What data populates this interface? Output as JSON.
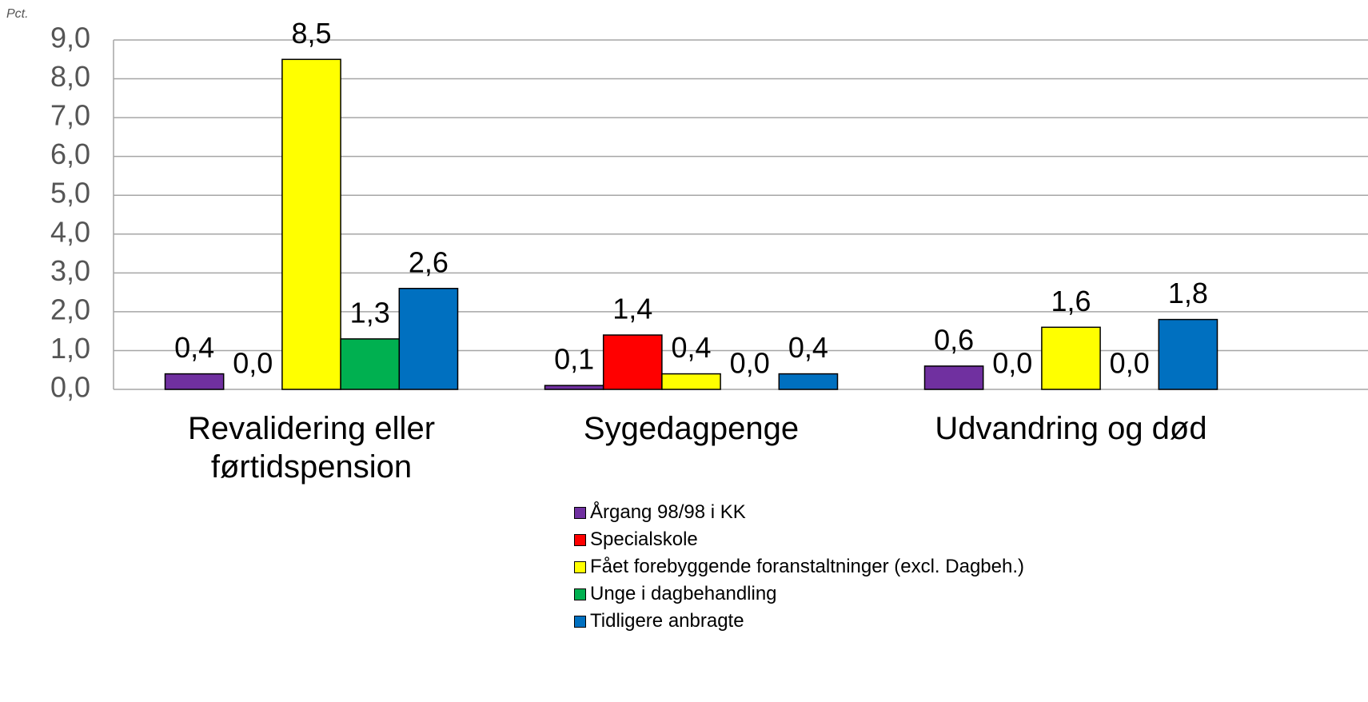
{
  "chart_data": {
    "type": "bar",
    "y_label": "Pct.",
    "categories": [
      "Revalidering eller førtidspension",
      "Sygedagpenge",
      "Udvandring og død"
    ],
    "series": [
      {
        "name": "Årgang 98/98 i KK",
        "color": "#7030a0",
        "values": [
          0.4,
          0.1,
          0.6
        ],
        "value_labels": [
          "0,4",
          "0,1",
          "0,6"
        ]
      },
      {
        "name": "Specialskole",
        "color": "#ff0000",
        "values": [
          0.0,
          1.4,
          0.0
        ],
        "value_labels": [
          "0,0",
          "1,4",
          "0,0"
        ]
      },
      {
        "name": "Fået forebyggende foranstaltninger (excl. Dagbeh.)",
        "color": "#ffff00",
        "values": [
          8.5,
          0.4,
          1.6
        ],
        "value_labels": [
          "8,5",
          "0,4",
          "1,6"
        ]
      },
      {
        "name": "Unge i dagbehandling",
        "color": "#00b050",
        "values": [
          1.3,
          0.0,
          0.0
        ],
        "value_labels": [
          "1,3",
          "0,0",
          "0,0"
        ]
      },
      {
        "name": "Tidligere anbragte",
        "color": "#0070c0",
        "values": [
          2.6,
          0.4,
          1.8
        ],
        "value_labels": [
          "2,6",
          "0,4",
          "1,8"
        ]
      }
    ],
    "ylim": [
      0,
      9
    ],
    "yticks": [
      {
        "value": 0,
        "label": "0,0"
      },
      {
        "value": 1,
        "label": "1,0"
      },
      {
        "value": 2,
        "label": "2,0"
      },
      {
        "value": 3,
        "label": "3,0"
      },
      {
        "value": 4,
        "label": "4,0"
      },
      {
        "value": 5,
        "label": "5,0"
      },
      {
        "value": 6,
        "label": "6,0"
      },
      {
        "value": 7,
        "label": "7,0"
      },
      {
        "value": 8,
        "label": "8,0"
      },
      {
        "value": 9,
        "label": "9,0"
      }
    ],
    "grid": true,
    "legend": "bottom"
  }
}
